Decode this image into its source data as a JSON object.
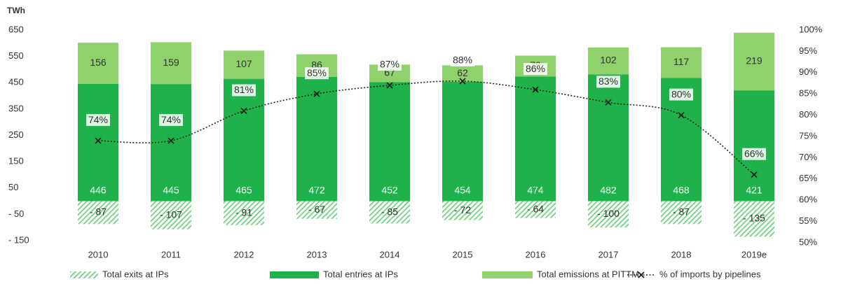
{
  "chart_data": {
    "type": "bar",
    "y_axis_label": "TWh",
    "categories": [
      "2010",
      "2011",
      "2012",
      "2013",
      "2014",
      "2015",
      "2016",
      "2017",
      "2018",
      "2019e"
    ],
    "series": [
      {
        "name": "Total exits at IPs",
        "color": "#6fcf7f",
        "pattern": "hatch",
        "values": [
          -87,
          -107,
          -91,
          -67,
          -85,
          -72,
          -64,
          -100,
          -87,
          -135
        ],
        "value_labels": [
          "- 87",
          "- 107",
          "- 91",
          "- 67",
          "- 85",
          "- 72",
          "- 64",
          "- 100",
          "- 87",
          "- 135"
        ]
      },
      {
        "name": "Total entries at IPs",
        "color": "#1fb24a",
        "values": [
          446,
          445,
          465,
          472,
          452,
          454,
          474,
          482,
          468,
          421
        ]
      },
      {
        "name": "Total emissions at PITTM",
        "color": "#8fd16a",
        "values": [
          156,
          159,
          107,
          86,
          67,
          62,
          79,
          102,
          117,
          219
        ]
      },
      {
        "name": "% of imports by pipelines",
        "color": "#222222",
        "type": "line",
        "axis": "y2",
        "values": [
          74,
          74,
          81,
          85,
          87,
          88,
          86,
          83,
          80,
          66
        ],
        "value_labels": [
          "74%",
          "74%",
          "81%",
          "85%",
          "87%",
          "88%",
          "86%",
          "83%",
          "80%",
          "66%"
        ]
      }
    ],
    "ylim": [
      -150,
      650
    ],
    "yticks": [
      {
        "value": -150,
        "label": "- 150"
      },
      {
        "value": -50,
        "label": "- 50"
      },
      50,
      150,
      250,
      350,
      450,
      550,
      650
    ],
    "y2lim": [
      50,
      100
    ],
    "y2ticks": [
      {
        "value": 50,
        "label": "50%"
      },
      {
        "value": 55,
        "label": "55%"
      },
      {
        "value": 60,
        "label": "60%"
      },
      {
        "value": 65,
        "label": "65%"
      },
      {
        "value": 70,
        "label": "70%"
      },
      {
        "value": 75,
        "label": "75%"
      },
      {
        "value": 80,
        "label": "80%"
      },
      {
        "value": 85,
        "label": "85%"
      },
      {
        "value": 90,
        "label": "90%"
      },
      {
        "value": 95,
        "label": "95%"
      },
      {
        "value": 100,
        "label": "100%"
      }
    ],
    "grid": false,
    "legend": "bottom"
  }
}
